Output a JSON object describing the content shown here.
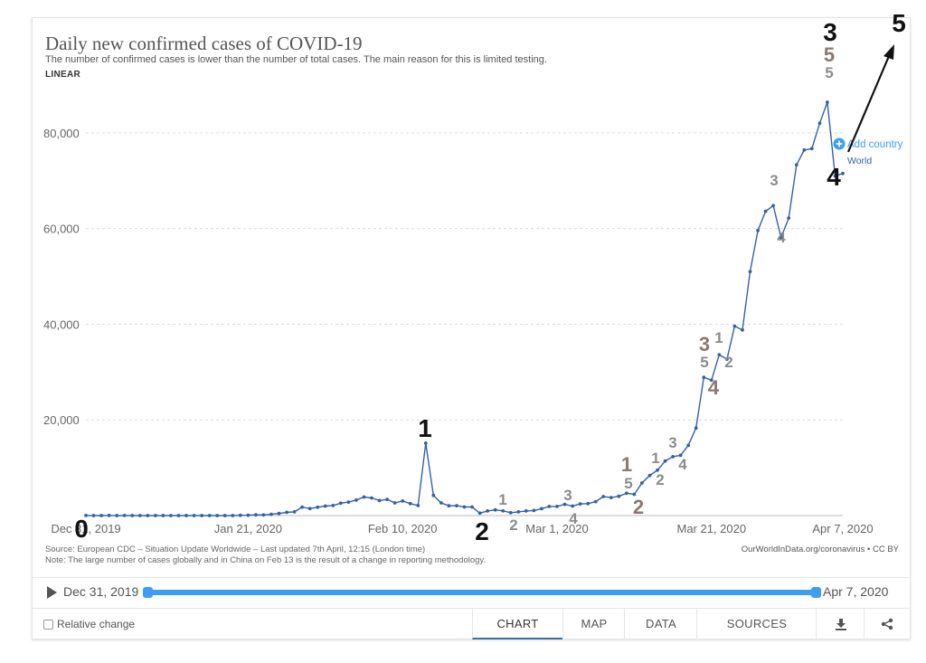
{
  "chart": {
    "title": "Daily new confirmed cases of COVID-19",
    "subtitle": "The number of confirmed cases is lower than the number of total cases. The main reason for this is limited testing.",
    "scale": "LINEAR",
    "add_country": "Add country",
    "series_label": "World",
    "source": "Source: European CDC – Situation Update Worldwide – Last updated 7th April, 12:15 (London time)",
    "note": "Note: The large number of cases globally and in China on Feb 13 is the result of a change in reporting methodology.",
    "credit": "OurWorldInData.org/coronavirus • CC BY"
  },
  "timeline": {
    "start": "Dec 31, 2019",
    "end": "Apr 7, 2020"
  },
  "controls": {
    "relative_change": "Relative change",
    "tabs": [
      "CHART",
      "MAP",
      "DATA",
      "SOURCES"
    ]
  },
  "colors": {
    "line": "#3360a9",
    "accent": "#3d9ef1",
    "annotation_gray": "#8c8c8c",
    "annotation_brown": "#8d7771",
    "annotation_black": "#111111"
  },
  "chart_data": {
    "type": "line",
    "ylim": [
      0,
      90000
    ],
    "y_ticks": [
      0,
      20000,
      40000,
      60000,
      80000
    ],
    "y_tick_labels": [
      "",
      "20,000",
      "40,000",
      "60,000",
      "80,000"
    ],
    "x_tick_labels": [
      "Dec 31, 2019",
      "Jan 21, 2020",
      "Feb 10, 2020",
      "Mar 1, 2020",
      "Mar 21, 2020",
      "Apr 7, 2020"
    ],
    "x_tick_days": [
      0,
      21,
      41,
      61,
      81,
      98
    ],
    "series": [
      {
        "name": "World",
        "values": [
          27,
          0,
          0,
          17,
          0,
          15,
          0,
          0,
          0,
          0,
          0,
          0,
          0,
          0,
          0,
          0,
          0,
          0,
          0,
          0,
          59,
          77,
          149,
          131,
          259,
          444,
          688,
          769,
          1771,
          1459,
          1737,
          1982,
          2101,
          2590,
          2826,
          3235,
          3884,
          3694,
          3143,
          3385,
          2652,
          3040,
          2494,
          2091,
          15150,
          4216,
          2638,
          2038,
          2058,
          1801,
          1799,
          518,
          970,
          1193,
          990,
          613,
          772,
          966,
          1058,
          1433,
          1901,
          1906,
          2352,
          1981,
          2439,
          2505,
          2909,
          3979,
          3760,
          4029,
          4665,
          4452,
          6800,
          8400,
          9500,
          11400,
          12300,
          12600,
          14700,
          18300,
          28900,
          28300,
          33600,
          32700,
          39600,
          38800,
          51000,
          59600,
          63600,
          64800,
          58100,
          62200,
          73300,
          76400,
          76700,
          82000,
          86400,
          71000,
          71500
        ]
      }
    ],
    "annotations": [
      {
        "text": "0",
        "day": 0,
        "color": "black",
        "size": "large"
      },
      {
        "text": "1",
        "day": 44,
        "color": "black",
        "size": "large"
      },
      {
        "text": "2",
        "day": 51,
        "color": "black",
        "size": "large"
      },
      {
        "text": "1",
        "day": 53,
        "color": "gray",
        "size": "small"
      },
      {
        "text": "2",
        "day": 54,
        "color": "gray",
        "size": "small"
      },
      {
        "text": "3",
        "day": 62,
        "color": "gray",
        "size": "small"
      },
      {
        "text": "4",
        "day": 62,
        "color": "gray",
        "size": "small"
      },
      {
        "text": "1",
        "day": 71,
        "color": "brown",
        "size": "medium"
      },
      {
        "text": "5",
        "day": 71,
        "color": "gray",
        "size": "small"
      },
      {
        "text": "2",
        "day": 72,
        "color": "brown",
        "size": "medium"
      },
      {
        "text": "1",
        "day": 74,
        "color": "gray",
        "size": "small"
      },
      {
        "text": "2",
        "day": 74,
        "color": "gray",
        "size": "small"
      },
      {
        "text": "3",
        "day": 76,
        "color": "gray",
        "size": "small"
      },
      {
        "text": "4",
        "day": 77,
        "color": "gray",
        "size": "small"
      },
      {
        "text": "3",
        "day": 80,
        "color": "brown",
        "size": "medium"
      },
      {
        "text": "5",
        "day": 80,
        "color": "gray",
        "size": "small"
      },
      {
        "text": "4",
        "day": 81,
        "color": "brown",
        "size": "medium"
      },
      {
        "text": "1",
        "day": 82,
        "color": "gray",
        "size": "small"
      },
      {
        "text": "2",
        "day": 83,
        "color": "gray",
        "size": "small"
      },
      {
        "text": "3",
        "day": 88,
        "color": "gray",
        "size": "small"
      },
      {
        "text": "4",
        "day": 89,
        "color": "gray",
        "size": "small"
      },
      {
        "text": "3",
        "day": 96,
        "color": "black",
        "size": "large"
      },
      {
        "text": "5",
        "day": 96,
        "color": "brown",
        "size": "medium"
      },
      {
        "text": "5",
        "day": 96,
        "color": "gray",
        "size": "small"
      },
      {
        "text": "4",
        "day": 97,
        "color": "black",
        "size": "large"
      },
      {
        "text": "5",
        "day": 98,
        "color": "black",
        "size": "large"
      }
    ]
  }
}
